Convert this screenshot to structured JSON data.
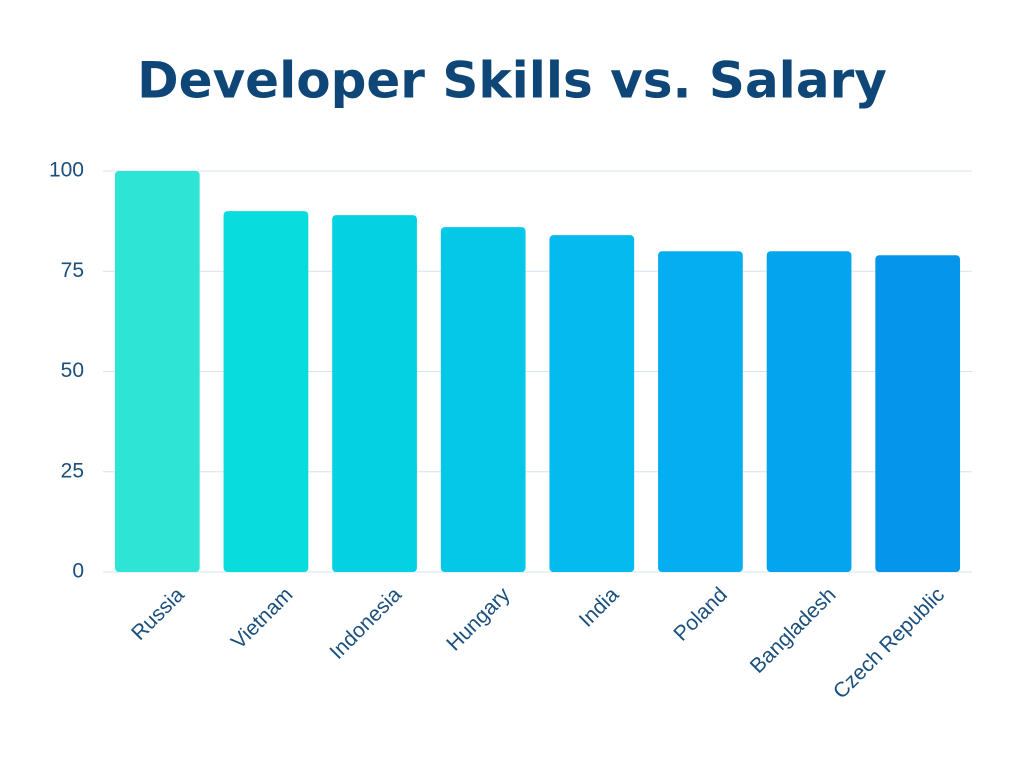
{
  "chart_data": {
    "type": "bar",
    "title": "Developer Skills vs. Salary",
    "categories": [
      "Russia",
      "Vietnam",
      "Indonesia",
      "Hungary",
      "India",
      "Poland",
      "Bangladesh",
      "Czech Republic"
    ],
    "values": [
      100,
      90,
      89,
      86,
      84,
      80,
      80,
      79
    ],
    "colors": [
      "#2ee5d5",
      "#09dcdc",
      "#04d2e3",
      "#05c8e8",
      "#04baee",
      "#04aef1",
      "#04a4ef",
      "#0595ea"
    ],
    "ylim": [
      0,
      100
    ],
    "yticks": [
      0,
      25,
      50,
      75,
      100
    ],
    "grid": true
  }
}
